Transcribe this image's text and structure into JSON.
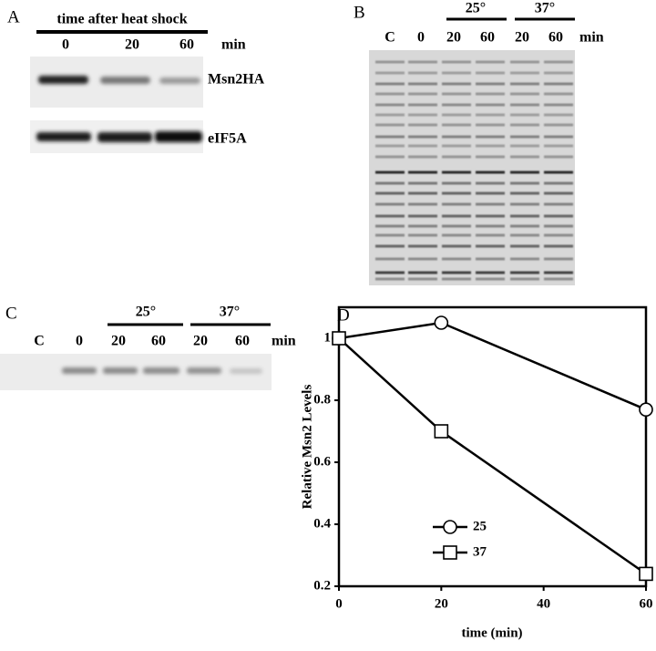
{
  "panels": {
    "A": {
      "label": "A",
      "header": "time after heat shock",
      "lanes": [
        "0",
        "20",
        "60"
      ],
      "unit": "min",
      "blots": [
        "Msn2HA",
        "eIF5A"
      ]
    },
    "B": {
      "label": "B",
      "groups": [
        "25°",
        "37°"
      ],
      "lanes": [
        "C",
        "0",
        "20",
        "60",
        "20",
        "60"
      ],
      "unit": "min"
    },
    "C": {
      "label": "C",
      "groups": [
        "25°",
        "37°"
      ],
      "lanes": [
        "C",
        "0",
        "20",
        "60",
        "20",
        "60"
      ],
      "unit": "min"
    },
    "D": {
      "label": "D"
    }
  },
  "chart_data": {
    "type": "line",
    "x_label": "time (min)",
    "y_label": "Relative Msn2 Levels",
    "x": [
      0,
      20,
      60
    ],
    "series": [
      {
        "name": "25",
        "color": "#000000",
        "marker": "circle",
        "values": [
          1,
          1.05,
          0.77
        ]
      },
      {
        "name": "37",
        "color": "#000000",
        "marker": "square",
        "values": [
          1,
          0.7,
          0.24
        ]
      }
    ],
    "xlim": [
      0,
      60
    ],
    "xticks": [
      0,
      20,
      40,
      60
    ],
    "ylim": [
      0.2,
      1.1
    ],
    "yticks": [
      0.2,
      0.4,
      0.6,
      0.8,
      1
    ],
    "legend": "lower left"
  }
}
